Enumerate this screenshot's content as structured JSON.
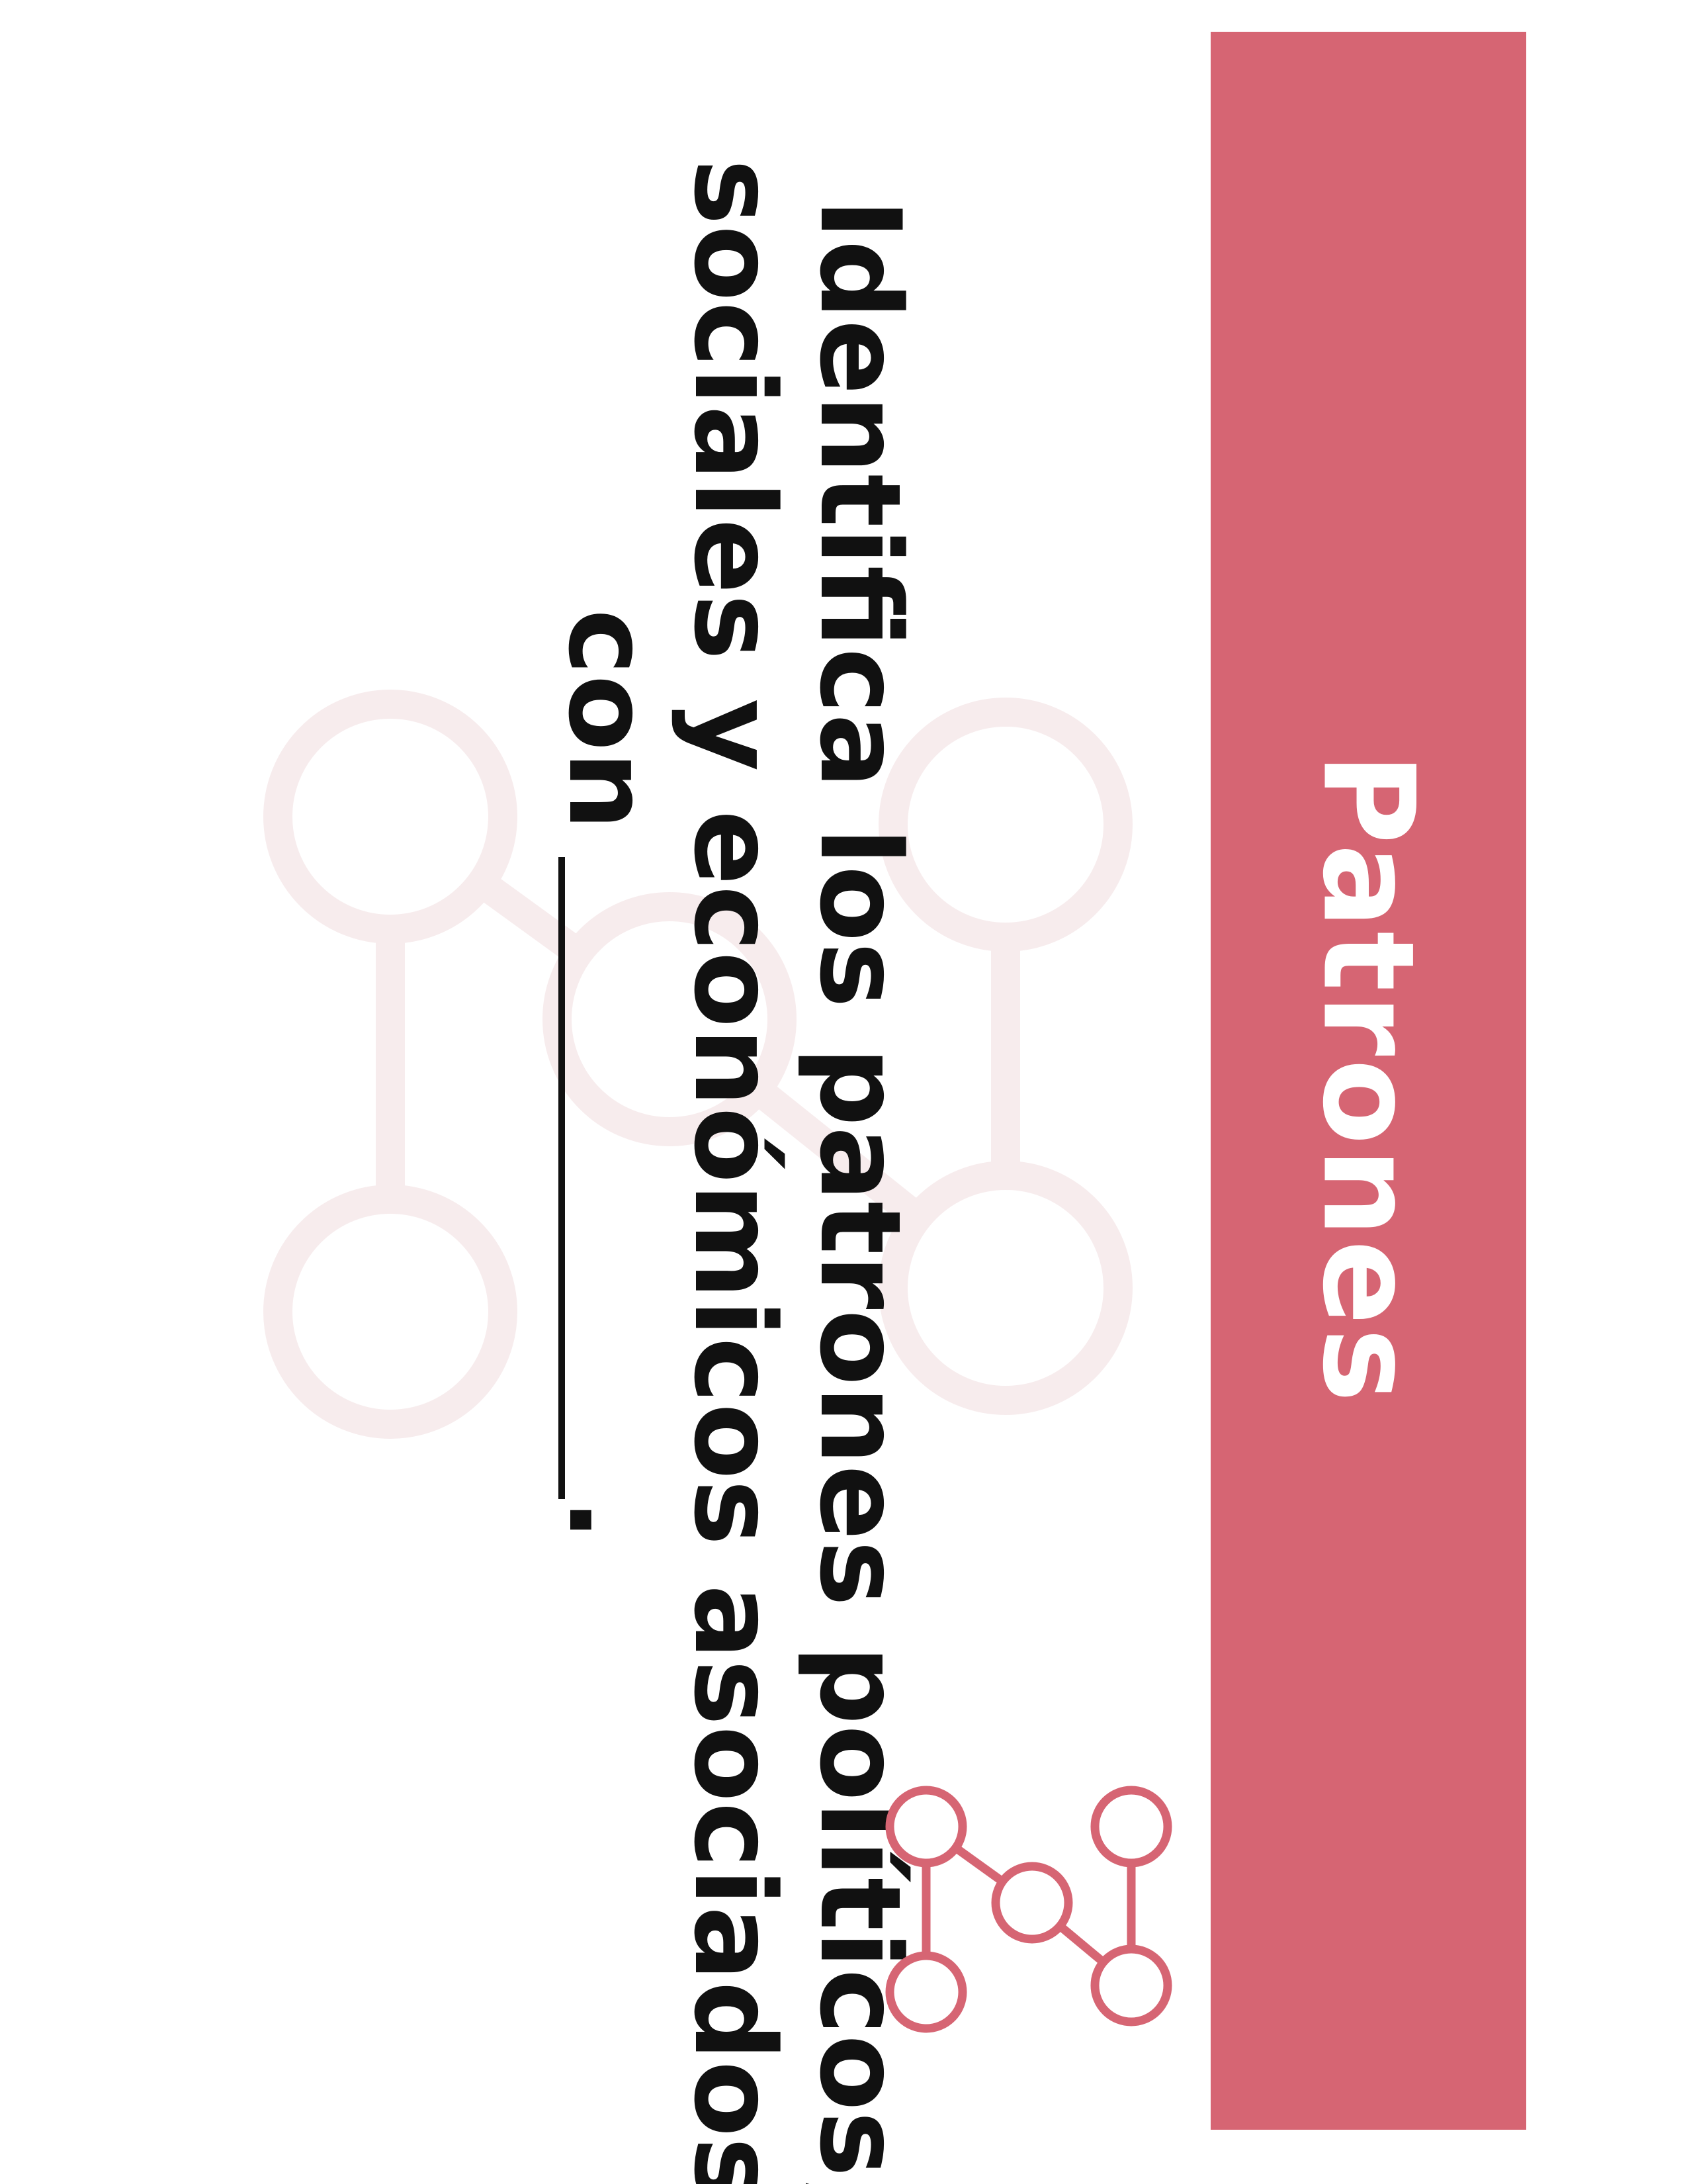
{
  "banner": {
    "title": "Patrones"
  },
  "prompt": {
    "line1": "Identifica los patrones políticos,",
    "line2": "sociales y económicos asociados",
    "line3_start": "con",
    "line3_end": "."
  },
  "icons": {
    "background": "network-nodes-icon",
    "accent": "network-nodes-icon"
  },
  "colors": {
    "band": "#d66573",
    "accent": "#d66573",
    "watermark": "#f7eced",
    "text": "#111111",
    "banner_text": "#ffffff"
  }
}
